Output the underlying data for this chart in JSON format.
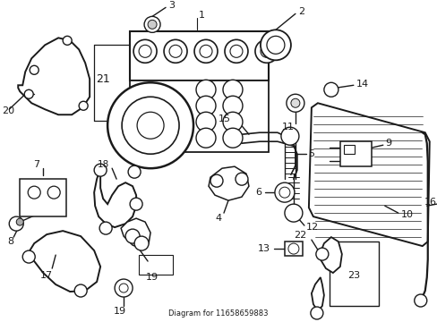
{
  "bg": "#ffffff",
  "lc": "#1a1a1a",
  "fw": 4.89,
  "fh": 3.6,
  "dpi": 100,
  "xl": 0,
  "xr": 489,
  "yb": 0,
  "yt": 360
}
